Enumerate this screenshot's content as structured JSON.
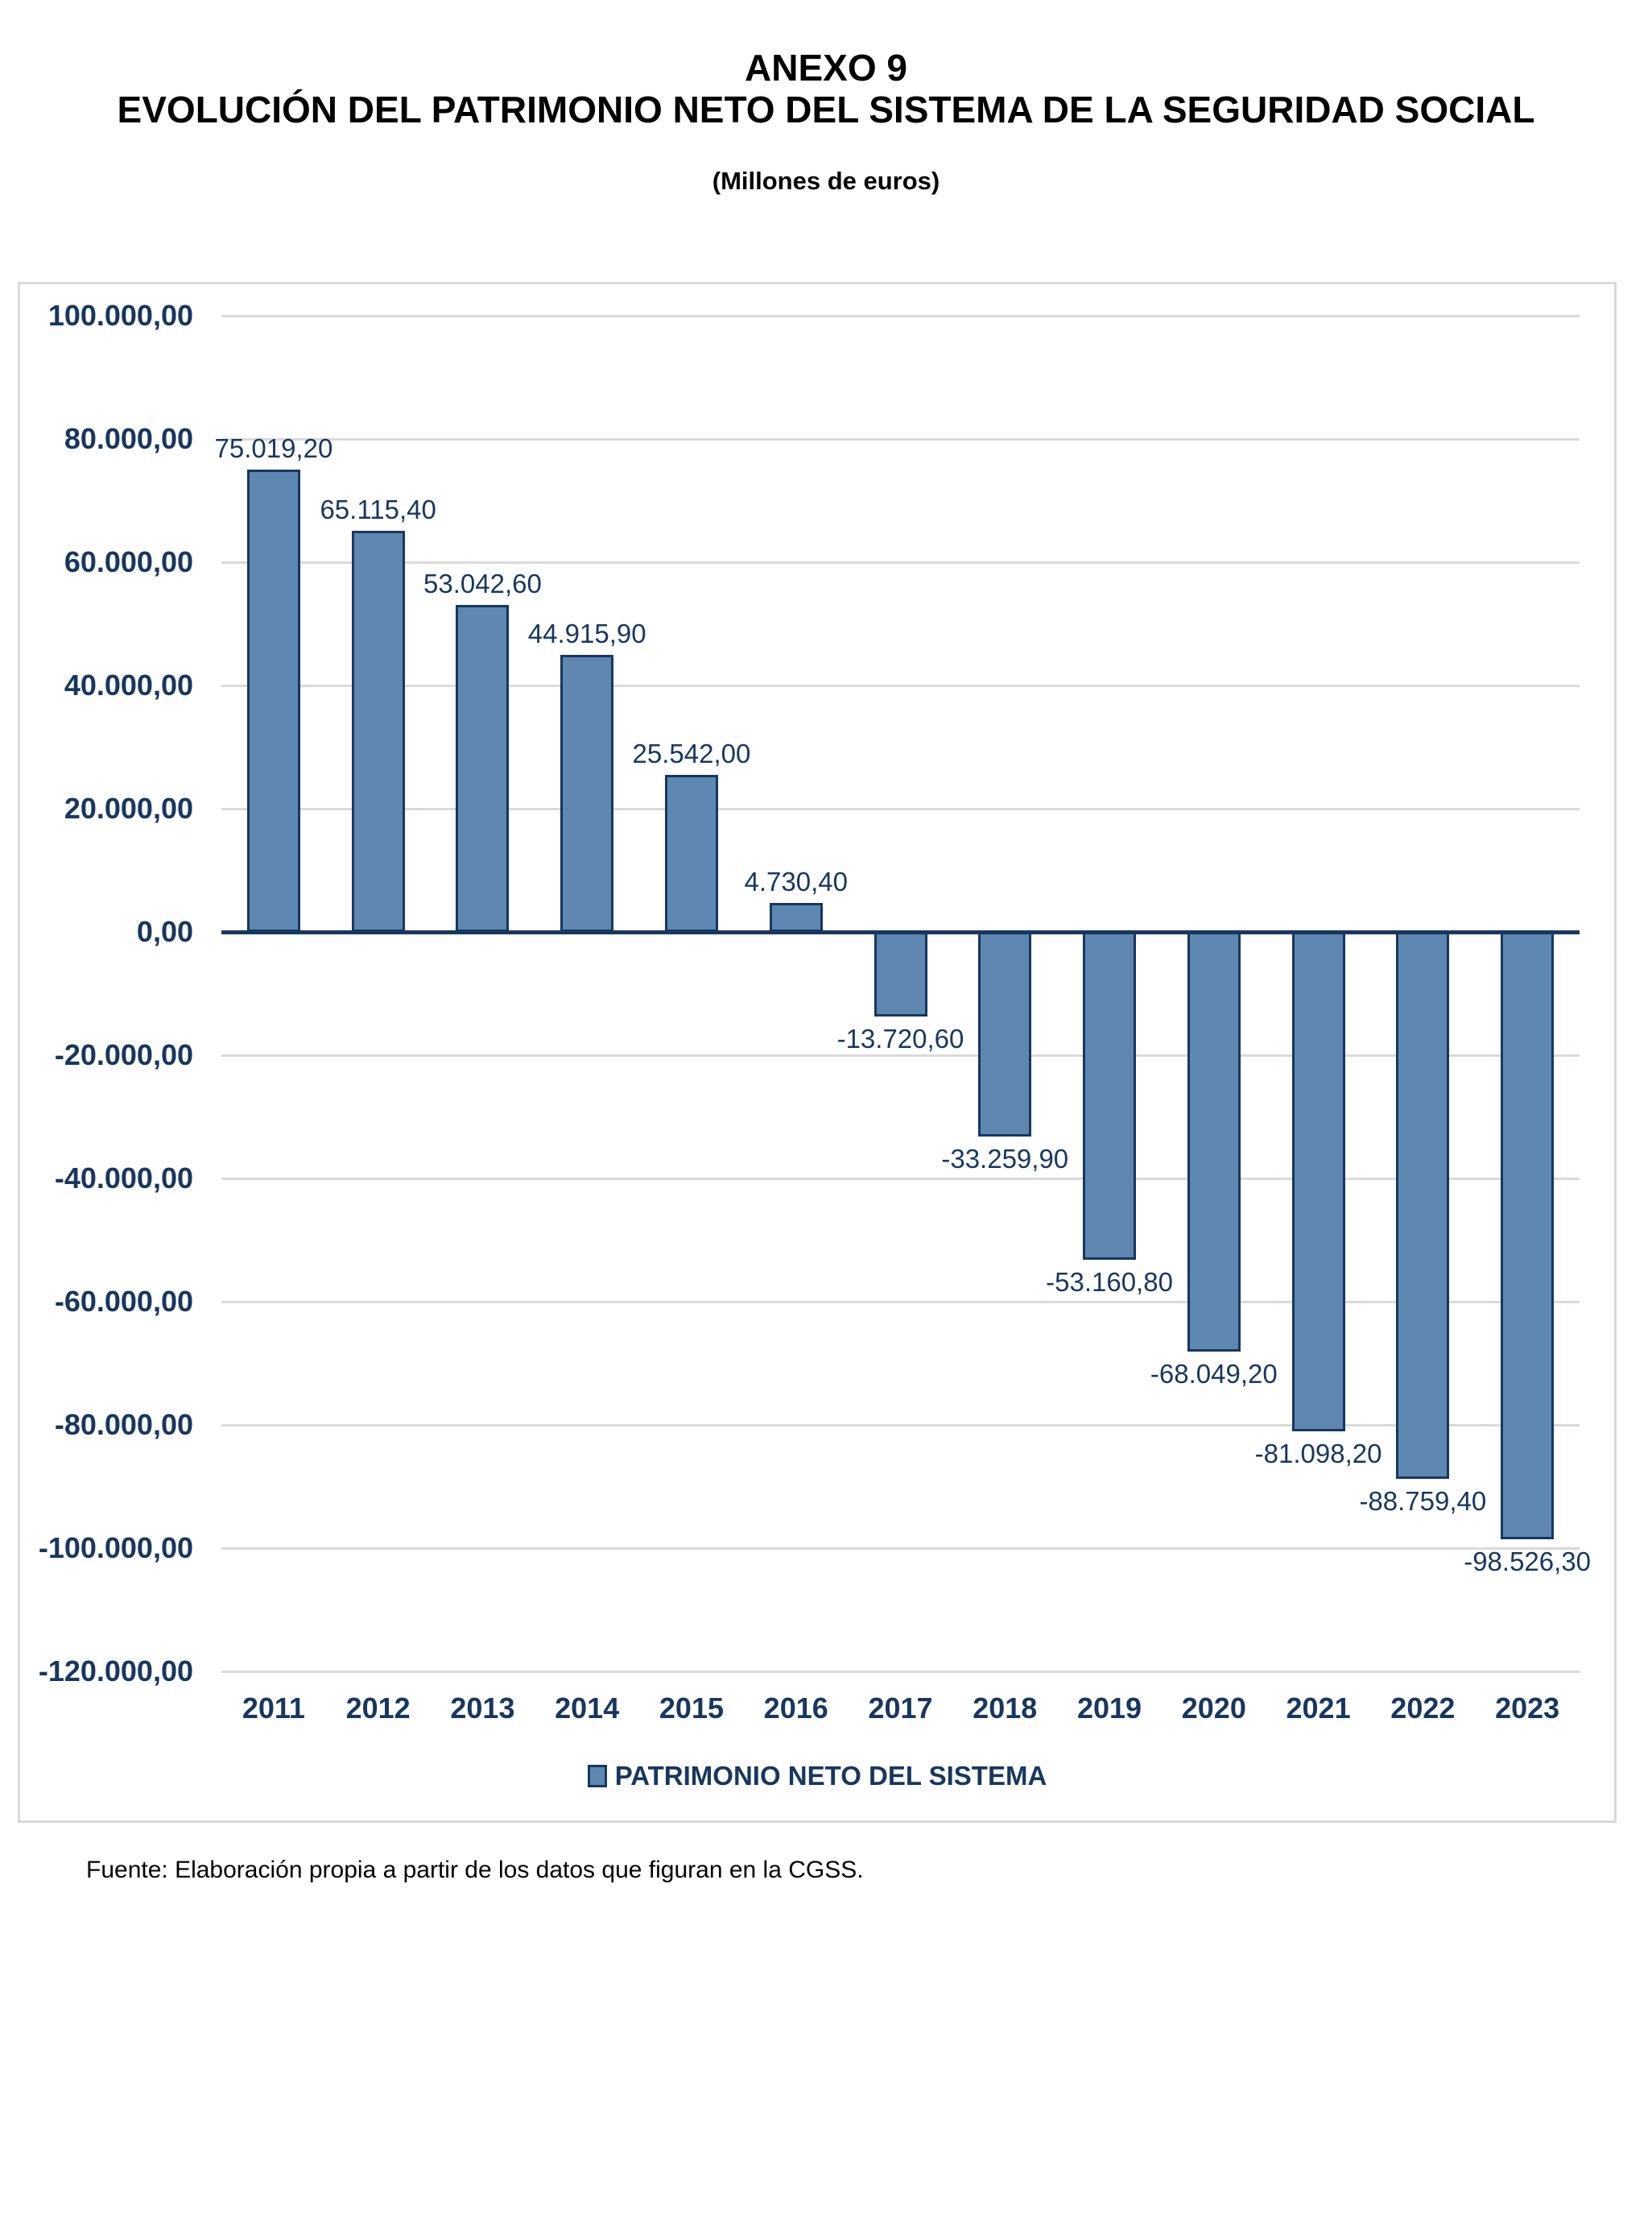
{
  "page": {
    "title_line1": "ANEXO 9",
    "title_line2": "EVOLUCIÓN DEL PATRIMONIO NETO DEL SISTEMA DE LA SEGURIDAD SOCIAL",
    "subtitle": "(Millones de euros)",
    "source_note": "Fuente: Elaboración propia a partir de los datos que figuran en la CGSS."
  },
  "chart_data": {
    "type": "bar",
    "title": "ANEXO 9 — EVOLUCIÓN DEL PATRIMONIO NETO DEL SISTEMA DE LA SEGURIDAD SOCIAL",
    "subtitle": "(Millones de euros)",
    "legend": "PATRIMONIO NETO DEL SISTEMA",
    "legend_position": "bottom",
    "grid": true,
    "xlabel": "",
    "ylabel": "",
    "ylim": [
      -120000,
      100000
    ],
    "ytick_step": 20000,
    "yticks": [
      {
        "value": 100000,
        "label": "100.000,00"
      },
      {
        "value": 80000,
        "label": "80.000,00"
      },
      {
        "value": 60000,
        "label": "60.000,00"
      },
      {
        "value": 40000,
        "label": "40.000,00"
      },
      {
        "value": 20000,
        "label": "20.000,00"
      },
      {
        "value": 0,
        "label": "0,00"
      },
      {
        "value": -20000,
        "label": "-20.000,00"
      },
      {
        "value": -40000,
        "label": "-40.000,00"
      },
      {
        "value": -60000,
        "label": "-60.000,00"
      },
      {
        "value": -80000,
        "label": "-80.000,00"
      },
      {
        "value": -100000,
        "label": "-100.000,00"
      },
      {
        "value": -120000,
        "label": "-120.000,00"
      }
    ],
    "categories": [
      "2011",
      "2012",
      "2013",
      "2014",
      "2015",
      "2016",
      "2017",
      "2018",
      "2019",
      "2020",
      "2021",
      "2022",
      "2023"
    ],
    "values": [
      75019.2,
      65115.4,
      53042.6,
      44915.9,
      25542.0,
      4730.4,
      -13720.6,
      -33259.9,
      -53160.8,
      -68049.2,
      -81098.2,
      -88759.4,
      -98526.3
    ],
    "value_labels": [
      "75.019,20",
      "65.115,40",
      "53.042,60",
      "44.915,90",
      "25.542,00",
      "4.730,40",
      "-13.720,60",
      "-33.259,90",
      "-53.160,80",
      "-68.049,20",
      "-81.098,20",
      "-88.759,40",
      "-98.526,30"
    ],
    "colors": {
      "bar_fill": "#5E87B2",
      "bar_border": "#17375E",
      "axis_text": "#17375E",
      "zero_axis": "#17375E",
      "gridline": "#DADADA",
      "frame_border": "#D9D9D9",
      "title_text": "#000000"
    }
  }
}
